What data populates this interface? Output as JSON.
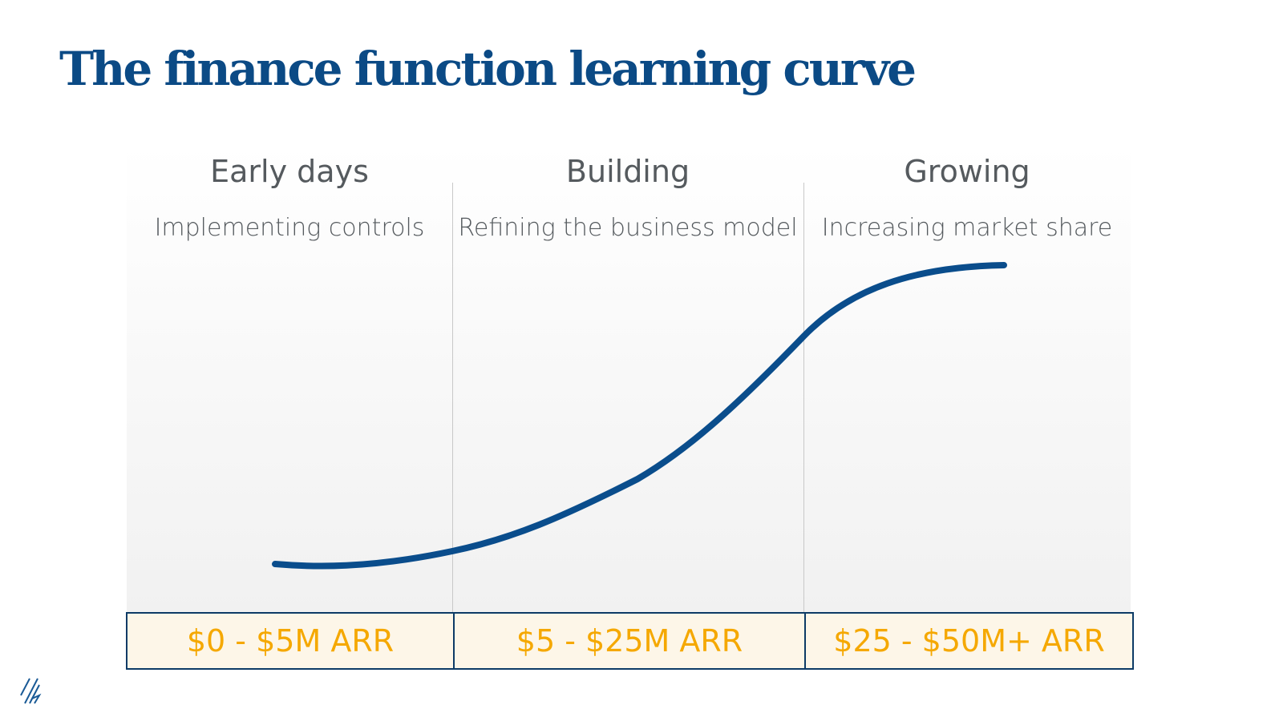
{
  "title": "The finance function learning curve",
  "stages": [
    {
      "heading": "Early days",
      "subtitle": "Implementing controls",
      "arr": "$0 - $5M ARR"
    },
    {
      "heading": "Building",
      "subtitle": "Refining the business model",
      "arr": "$5 - $25M ARR"
    },
    {
      "heading": "Growing",
      "subtitle": "Increasing market share",
      "arr": "$25 - $50M+ ARR"
    }
  ],
  "colors": {
    "title": "#0b4a85",
    "curve": "#0a4d8c",
    "arr_text": "#f5a800",
    "arr_fill": "#fdf6e8",
    "border": "#0d3b66"
  },
  "curve_shape": "s-curve rising from low (early days) to plateau (growing)"
}
